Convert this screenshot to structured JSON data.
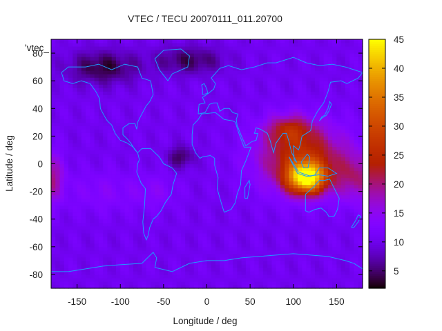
{
  "chart_data": {
    "type": "heatmap",
    "title": "VTEC / TECU 20070111_011.20700",
    "xlabel": "Longitude / deg",
    "ylabel": "Latitude / deg",
    "series_label": "'vtec_",
    "xlim": [
      -180,
      180
    ],
    "ylim": [
      -90,
      90
    ],
    "x_ticks": [
      -150,
      -100,
      -50,
      0,
      50,
      100,
      150
    ],
    "y_ticks": [
      -80,
      -60,
      -40,
      -20,
      0,
      20,
      40,
      60,
      80
    ],
    "colorbar": {
      "min": 2,
      "max": 45,
      "ticks": [
        5,
        10,
        15,
        20,
        25,
        30,
        35,
        40,
        45
      ],
      "palette": "gnuplot"
    },
    "grid": false,
    "field_blobs": [
      {
        "lon": 115,
        "lat": -10,
        "sigma_lon": 22,
        "sigma_lat": 11,
        "amp": 30
      },
      {
        "lon": 110,
        "lat": 5,
        "sigma_lon": 50,
        "sigma_lat": 24,
        "amp": 15
      },
      {
        "lon": 95,
        "lat": 25,
        "sigma_lon": 25,
        "sigma_lat": 10,
        "amp": 9
      },
      {
        "lon": 175,
        "lat": -10,
        "sigma_lon": 25,
        "sigma_lat": 18,
        "amp": 8
      },
      {
        "lon": -180,
        "lat": -10,
        "sigma_lon": 15,
        "sigma_lat": 18,
        "amp": 9
      },
      {
        "lon": -120,
        "lat": -20,
        "sigma_lon": 40,
        "sigma_lat": 15,
        "amp": 3
      },
      {
        "lon": -60,
        "lat": -20,
        "sigma_lon": 25,
        "sigma_lat": 12,
        "amp": 3
      }
    ],
    "field_base": 10.5,
    "dark_regions": [
      {
        "lon": -30,
        "lat": 5,
        "sigma_lon": 15,
        "sigma_lat": 8,
        "amp": 6
      },
      {
        "lon": -120,
        "lat": 70,
        "sigma_lon": 40,
        "sigma_lat": 12,
        "amp": 7
      },
      {
        "lon": -20,
        "lat": 75,
        "sigma_lon": 40,
        "sigma_lat": 10,
        "amp": 6
      }
    ]
  }
}
